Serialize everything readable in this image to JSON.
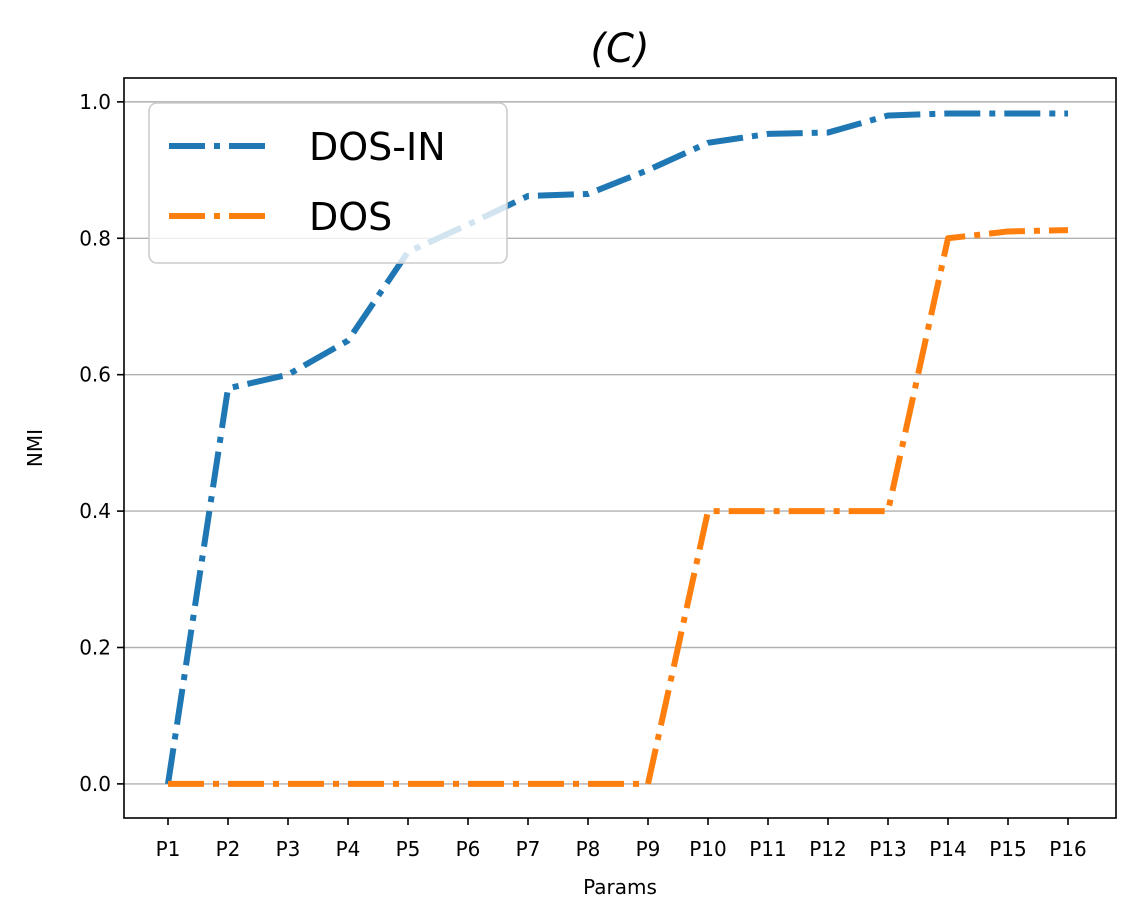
{
  "chart_data": {
    "type": "line",
    "title": "(C)",
    "xlabel": "Params",
    "ylabel": "NMI",
    "categories": [
      "P1",
      "P2",
      "P3",
      "P4",
      "P5",
      "P6",
      "P7",
      "P8",
      "P9",
      "P10",
      "P11",
      "P12",
      "P13",
      "P14",
      "P15",
      "P16"
    ],
    "ylim": [
      -0.05,
      1.035
    ],
    "yticks": [
      "0.0",
      "0.2",
      "0.4",
      "0.6",
      "0.8",
      "1.0"
    ],
    "grid": "horizontal",
    "legend_position": "top-left",
    "series": [
      {
        "name": "DOS-IN",
        "color": "#1f77b4",
        "values": [
          0.0,
          0.58,
          0.6,
          0.65,
          0.78,
          0.82,
          0.862,
          0.865,
          0.9,
          0.94,
          0.953,
          0.955,
          0.98,
          0.983,
          0.983,
          0.983
        ]
      },
      {
        "name": "DOS",
        "color": "#ff7f0e",
        "values": [
          0.0,
          0.0,
          0.0,
          0.0,
          0.0,
          0.0,
          0.0,
          0.0,
          0.0,
          0.4,
          0.4,
          0.4,
          0.4,
          0.8,
          0.81,
          0.812
        ]
      }
    ]
  }
}
